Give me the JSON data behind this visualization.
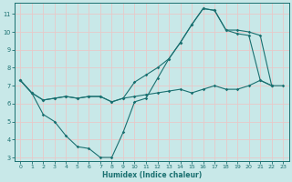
{
  "xlabel": "Humidex (Indice chaleur)",
  "bg_color": "#c8e8e8",
  "line_color": "#1a7070",
  "grid_color": "#e8c8c8",
  "xlim": [
    -0.5,
    23.5
  ],
  "ylim": [
    2.8,
    11.6
  ],
  "xticks": [
    0,
    1,
    2,
    3,
    4,
    5,
    6,
    7,
    8,
    9,
    10,
    11,
    12,
    13,
    14,
    15,
    16,
    17,
    18,
    19,
    20,
    21,
    22,
    23
  ],
  "yticks": [
    3,
    4,
    5,
    6,
    7,
    8,
    9,
    10,
    11
  ],
  "line1_x": [
    0,
    1,
    2,
    3,
    4,
    5,
    6,
    7,
    8,
    9,
    10,
    11,
    12,
    13,
    14,
    15,
    16,
    17,
    18,
    19,
    20,
    21,
    22
  ],
  "line1_y": [
    7.3,
    6.6,
    5.4,
    5.0,
    4.2,
    3.6,
    3.5,
    3.0,
    3.0,
    4.4,
    6.1,
    6.3,
    7.4,
    8.5,
    9.4,
    10.4,
    11.3,
    11.2,
    10.1,
    9.9,
    9.8,
    7.3,
    7.0
  ],
  "line2_x": [
    0,
    1,
    2,
    3,
    4,
    5,
    6,
    7,
    8,
    9,
    10,
    11,
    12,
    13,
    14,
    15,
    16,
    17,
    18,
    19,
    20,
    21,
    22,
    23
  ],
  "line2_y": [
    7.3,
    6.6,
    6.2,
    6.3,
    6.4,
    6.3,
    6.4,
    6.4,
    6.1,
    6.3,
    6.4,
    6.5,
    6.6,
    6.7,
    6.8,
    6.6,
    6.8,
    7.0,
    6.8,
    6.8,
    7.0,
    7.3,
    7.0,
    7.0
  ],
  "line3_x": [
    0,
    1,
    2,
    3,
    4,
    5,
    6,
    7,
    8,
    9,
    10,
    11,
    12,
    13,
    14,
    15,
    16,
    17,
    18,
    19,
    20,
    21,
    22
  ],
  "line3_y": [
    7.3,
    6.6,
    6.2,
    6.3,
    6.4,
    6.3,
    6.4,
    6.4,
    6.1,
    6.3,
    7.2,
    7.6,
    8.0,
    8.5,
    9.4,
    10.4,
    11.3,
    11.2,
    10.1,
    10.1,
    10.0,
    9.8,
    7.0
  ]
}
